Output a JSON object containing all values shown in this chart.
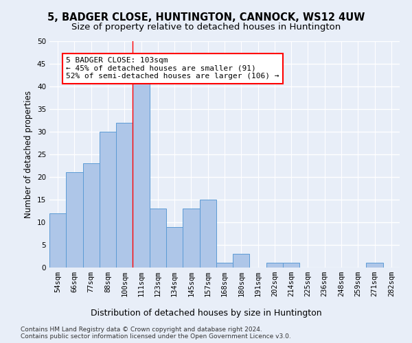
{
  "title": "5, BADGER CLOSE, HUNTINGTON, CANNOCK, WS12 4UW",
  "subtitle": "Size of property relative to detached houses in Huntington",
  "xlabel": "Distribution of detached houses by size in Huntington",
  "ylabel": "Number of detached properties",
  "categories": [
    "54sqm",
    "66sqm",
    "77sqm",
    "88sqm",
    "100sqm",
    "111sqm",
    "123sqm",
    "134sqm",
    "145sqm",
    "157sqm",
    "168sqm",
    "180sqm",
    "191sqm",
    "202sqm",
    "214sqm",
    "225sqm",
    "236sqm",
    "248sqm",
    "259sqm",
    "271sqm",
    "282sqm"
  ],
  "values": [
    12,
    21,
    23,
    30,
    32,
    41,
    13,
    9,
    13,
    15,
    1,
    3,
    0,
    1,
    1,
    0,
    0,
    0,
    0,
    1,
    0
  ],
  "bar_color": "#aec6e8",
  "bar_edge_color": "#5b9bd5",
  "background_color": "#e8eef8",
  "grid_color": "#ffffff",
  "vline_x": 4.5,
  "annotation_line1": "5 BADGER CLOSE: 103sqm",
  "annotation_line2": "← 45% of detached houses are smaller (91)",
  "annotation_line3": "52% of semi-detached houses are larger (106) →",
  "annotation_box_color": "white",
  "annotation_box_edge": "red",
  "ylim": [
    0,
    50
  ],
  "yticks": [
    0,
    5,
    10,
    15,
    20,
    25,
    30,
    35,
    40,
    45,
    50
  ],
  "footnote": "Contains HM Land Registry data © Crown copyright and database right 2024.\nContains public sector information licensed under the Open Government Licence v3.0.",
  "title_fontsize": 10.5,
  "subtitle_fontsize": 9.5,
  "xlabel_fontsize": 9,
  "ylabel_fontsize": 8.5,
  "tick_fontsize": 7.5,
  "annot_fontsize": 8,
  "footnote_fontsize": 6.5
}
